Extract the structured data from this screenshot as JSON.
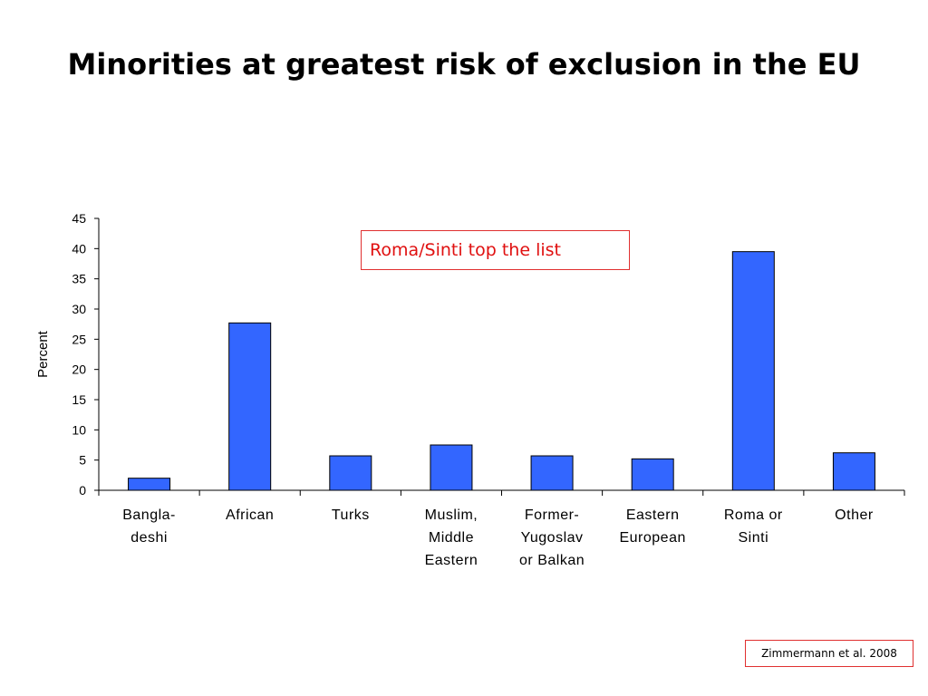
{
  "slide": {
    "title": "Minorities at greatest risk of exclusion in the EU",
    "callout": "Roma/Sinti top the list",
    "source": "Zimmermann et al. 2008"
  },
  "colors": {
    "bar_fill": "#3366ff",
    "bar_stroke": "#000000",
    "callout_text": "#e01010",
    "box_border": "#e03030"
  },
  "chart_data": {
    "type": "bar",
    "title": "",
    "xlabel": "",
    "ylabel": "Percent",
    "ylim": [
      0,
      45
    ],
    "yticks": [
      0,
      5,
      10,
      15,
      20,
      25,
      30,
      35,
      40,
      45
    ],
    "grid": false,
    "categories": [
      [
        "Bangla-",
        "deshi"
      ],
      [
        "African"
      ],
      [
        "Turks"
      ],
      [
        "Muslim,",
        "Middle",
        "Eastern"
      ],
      [
        "Former-",
        "Yugoslav",
        "or Balkan"
      ],
      [
        "Eastern",
        "European"
      ],
      [
        "Roma or",
        "Sinti"
      ],
      [
        "Other"
      ]
    ],
    "values": [
      2,
      27.7,
      5.7,
      7.5,
      5.7,
      5.2,
      39.5,
      6.2
    ]
  }
}
